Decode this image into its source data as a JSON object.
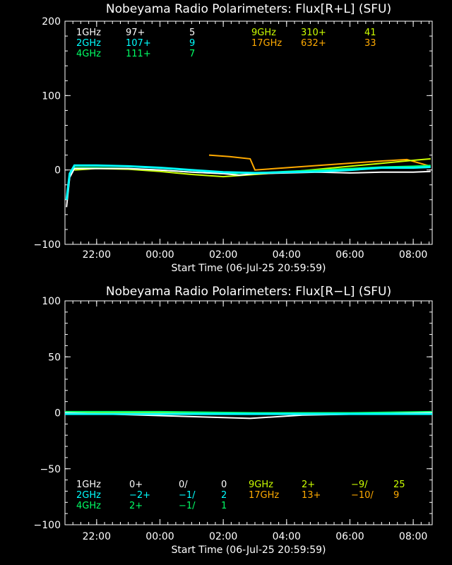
{
  "chart_data": [
    {
      "type": "line",
      "title": "Nobeyama Radio Polarimeters: Flux[R+L] (SFU)",
      "xlabel": "Start Time (06-Jul-25 20:59:59)",
      "x_ticks": [
        "22:00",
        "00:00",
        "02:00",
        "04:00",
        "06:00",
        "08:00"
      ],
      "x_tick_hours": [
        1.0,
        3.0,
        5.0,
        7.0,
        9.0,
        11.0
      ],
      "xlim_hours": [
        0,
        11.6
      ],
      "ylim": [
        -100,
        200
      ],
      "y_ticks": [
        -100,
        0,
        100,
        200
      ],
      "y_tick_labels": [
        "−100",
        "0",
        "100",
        "200"
      ],
      "legend": [
        {
          "band": "1GHz",
          "peak": "97+",
          "value": "5"
        },
        {
          "band": "2GHz",
          "peak": "107+",
          "value": "9"
        },
        {
          "band": "4GHz",
          "peak": "111+",
          "value": "7"
        },
        {
          "band": "9GHz",
          "peak": "310+",
          "value": "41"
        },
        {
          "band": "17GHz",
          "peak": "632+",
          "value": "33"
        }
      ],
      "series": [
        {
          "name": "1GHz",
          "color": "#ffffff",
          "x": [
            0.05,
            0.15,
            0.3,
            1,
            2,
            3,
            4,
            5,
            5.5,
            6,
            7,
            8,
            9,
            10,
            11,
            11.55
          ],
          "y": [
            -50,
            -10,
            2,
            2,
            2,
            0,
            -3,
            -5,
            -7,
            -5,
            -4,
            -3,
            -4,
            -3,
            -3,
            -2
          ]
        },
        {
          "name": "2GHz",
          "color": "#00ffff",
          "x": [
            0.05,
            0.15,
            0.3,
            1,
            2,
            3,
            4,
            5,
            6,
            7,
            8,
            9,
            10,
            11,
            11.55
          ],
          "y": [
            -40,
            -5,
            6,
            6,
            5,
            3,
            0,
            -3,
            -4,
            -3,
            -2,
            0,
            3,
            3,
            4
          ]
        },
        {
          "name": "4GHz",
          "color": "#00ff66",
          "x": [
            0.3,
            1,
            2,
            3,
            4,
            5,
            6,
            7,
            8,
            9,
            10,
            11,
            11.55
          ],
          "y": [
            3,
            3,
            2,
            0,
            -3,
            -5,
            -4,
            -2,
            0,
            2,
            4,
            5,
            6
          ]
        },
        {
          "name": "9GHz",
          "color": "#ccff00",
          "x": [
            0.3,
            1,
            2,
            3,
            4,
            5,
            6,
            7,
            8,
            9,
            10,
            11,
            11.55
          ],
          "y": [
            0,
            2,
            1,
            -2,
            -6,
            -9,
            -6,
            -3,
            1,
            5,
            9,
            13,
            15
          ]
        },
        {
          "name": "17GHz",
          "color": "#ffaa00",
          "x": [
            4.55,
            5.2,
            5.85,
            6.0,
            9.3,
            10.0,
            10.8,
            11.55
          ],
          "y": [
            20,
            18,
            15,
            0,
            10,
            12,
            14,
            5
          ]
        }
      ]
    },
    {
      "type": "line",
      "title": "Nobeyama Radio Polarimeters: Flux[R−L] (SFU)",
      "xlabel": "Start Time (06-Jul-25 20:59:59)",
      "x_ticks": [
        "22:00",
        "00:00",
        "02:00",
        "04:00",
        "06:00",
        "08:00"
      ],
      "x_tick_hours": [
        1.0,
        3.0,
        5.0,
        7.0,
        9.0,
        11.0
      ],
      "xlim_hours": [
        0,
        11.6
      ],
      "ylim": [
        -100,
        100
      ],
      "y_ticks": [
        -100,
        -50,
        0,
        50,
        100
      ],
      "y_tick_labels": [
        "−100",
        "−50",
        "0",
        "50",
        "100"
      ],
      "legend": [
        {
          "band": "1GHz",
          "peak": "0+",
          "min": "0/",
          "value": "0"
        },
        {
          "band": "2GHz",
          "peak": "−2+",
          "min": "−1/",
          "value": "2"
        },
        {
          "band": "4GHz",
          "peak": "2+",
          "min": "−1/",
          "value": "1"
        },
        {
          "band": "9GHz",
          "peak": "2+",
          "min": "−9/",
          "value": "25"
        },
        {
          "band": "17GHz",
          "peak": "13+",
          "min": "−10/",
          "value": "9"
        }
      ],
      "series": [
        {
          "name": "1GHz",
          "color": "#ffffff",
          "x": [
            0,
            5.85,
            7.5,
            11.6
          ],
          "y": [
            0,
            -5,
            -2,
            0
          ]
        },
        {
          "name": "2GHz",
          "color": "#00ffff",
          "x": [
            0,
            3,
            6,
            9,
            11.6
          ],
          "y": [
            -1,
            -1,
            -1,
            -1,
            -1
          ]
        },
        {
          "name": "4GHz",
          "color": "#00ff66",
          "x": [
            0,
            3,
            6,
            9,
            11.6
          ],
          "y": [
            1,
            1,
            0,
            0,
            1
          ]
        },
        {
          "name": "9GHz",
          "color": "#ccff00",
          "x": [
            0,
            3,
            6,
            9,
            11.6
          ],
          "y": [
            0,
            0,
            0,
            0,
            0
          ]
        },
        {
          "name": "17GHz",
          "color": "#ffaa00",
          "x": [
            4.55,
            5.85,
            9.3,
            11.55
          ],
          "y": [
            0,
            0,
            0,
            0
          ]
        }
      ]
    }
  ]
}
